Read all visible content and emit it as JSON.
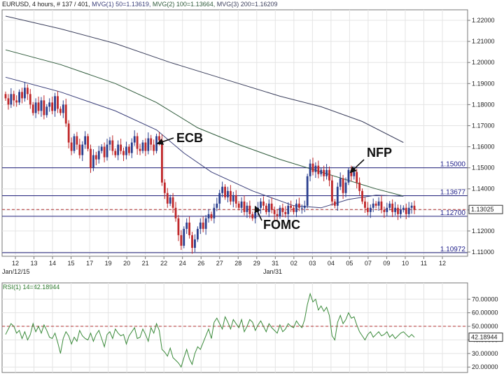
{
  "header": {
    "symbol": "EURUSD",
    "timeframe": ", 4 hours, # 137 / 401, ",
    "ma1": "MVG(1) 50=1.13619,",
    "ma2": "MVG(2) 100=1.13664,",
    "ma3": "MVG(3) 200=1.16209"
  },
  "colors": {
    "up": "#2a3f8f",
    "down": "#c0282a",
    "grid": "#e4e4e4",
    "ma50": "#3a3f7a",
    "ma100": "#2e5a3a",
    "ma200": "#3b3f5c",
    "level": "#1f1f7a",
    "rsi": "#3a8a3a",
    "dashed": "#b03030"
  },
  "chart_data": [
    {
      "type": "candlestick",
      "title": "EURUSD, 4 hours",
      "ylim": [
        1.108,
        1.225
      ],
      "y_ticks": [
        "1.22000",
        "1.21000",
        "1.20000",
        "1.19000",
        "1.18000",
        "1.17000",
        "1.16000",
        "1.15000",
        "1.14000",
        "1.13000",
        "1.12000",
        "1.11000"
      ],
      "x_ticks": [
        "12",
        "13",
        "14",
        "15",
        "17",
        "19",
        "20",
        "21",
        "22",
        "24",
        "26",
        "27",
        "28",
        "29",
        "31",
        "02",
        "03",
        "04",
        "05",
        "07",
        "09",
        "10",
        "11",
        "12"
      ],
      "x_sublabels": {
        "start": "Jan/12/15",
        "mid": "Jan/31"
      },
      "current_price_label": "1.13025",
      "current_price": 1.1302,
      "levels": [
        {
          "value": 1.15,
          "label": "1.15000"
        },
        {
          "value": 1.13677,
          "label": "1.13677"
        },
        {
          "value": 1.127,
          "label": "1.12700"
        },
        {
          "value": 1.10972,
          "label": "1.10972"
        }
      ],
      "annotations": [
        {
          "text": "ECB",
          "candle": 57
        },
        {
          "text": "FOMC",
          "candle": 94
        },
        {
          "text": "NFP",
          "candle": 130
        }
      ],
      "candles_close": [
        1.183,
        1.18,
        1.185,
        1.182,
        1.181,
        1.186,
        1.183,
        1.188,
        1.185,
        1.18,
        1.176,
        1.181,
        1.177,
        1.182,
        1.175,
        1.179,
        1.181,
        1.177,
        1.184,
        1.178,
        1.176,
        1.18,
        1.171,
        1.162,
        1.158,
        1.165,
        1.161,
        1.156,
        1.161,
        1.165,
        1.159,
        1.15,
        1.156,
        1.154,
        1.158,
        1.16,
        1.155,
        1.161,
        1.163,
        1.158,
        1.156,
        1.161,
        1.158,
        1.156,
        1.16,
        1.157,
        1.162,
        1.165,
        1.159,
        1.158,
        1.162,
        1.158,
        1.164,
        1.161,
        1.158,
        1.165,
        1.163,
        1.143,
        1.138,
        1.133,
        1.136,
        1.131,
        1.126,
        1.118,
        1.113,
        1.121,
        1.124,
        1.118,
        1.112,
        1.116,
        1.121,
        1.124,
        1.121,
        1.126,
        1.128,
        1.126,
        1.131,
        1.133,
        1.138,
        1.141,
        1.136,
        1.139,
        1.134,
        1.137,
        1.133,
        1.131,
        1.134,
        1.129,
        1.132,
        1.128,
        1.126,
        1.129,
        1.131,
        1.134,
        1.132,
        1.129,
        1.133,
        1.13,
        1.128,
        1.127,
        1.131,
        1.129,
        1.128,
        1.132,
        1.131,
        1.129,
        1.133,
        1.131,
        1.131,
        1.132,
        1.146,
        1.152,
        1.148,
        1.151,
        1.147,
        1.149,
        1.146,
        1.149,
        1.144,
        1.134,
        1.132,
        1.141,
        1.145,
        1.138,
        1.143,
        1.149,
        1.146,
        1.148,
        1.143,
        1.139,
        1.134,
        1.131,
        1.129,
        1.131,
        1.133,
        1.132,
        1.134,
        1.13,
        1.129,
        1.131,
        1.133,
        1.129,
        1.131,
        1.128,
        1.13,
        1.131,
        1.128,
        1.131,
        1.132,
        1.13
      ],
      "ma50": [
        [
          0,
          1.193
        ],
        [
          20,
          1.186
        ],
        [
          40,
          1.177
        ],
        [
          55,
          1.168
        ],
        [
          65,
          1.157
        ],
        [
          75,
          1.148
        ],
        [
          90,
          1.139
        ],
        [
          105,
          1.132
        ],
        [
          115,
          1.131
        ],
        [
          125,
          1.135
        ],
        [
          135,
          1.137
        ],
        [
          145,
          1.1365
        ]
      ],
      "ma100": [
        [
          0,
          1.206
        ],
        [
          20,
          1.199
        ],
        [
          40,
          1.19
        ],
        [
          55,
          1.181
        ],
        [
          70,
          1.169
        ],
        [
          85,
          1.161
        ],
        [
          100,
          1.154
        ],
        [
          115,
          1.148
        ],
        [
          125,
          1.144
        ],
        [
          135,
          1.14
        ],
        [
          145,
          1.1366
        ]
      ],
      "ma200": [
        [
          0,
          1.222
        ],
        [
          20,
          1.216
        ],
        [
          40,
          1.209
        ],
        [
          60,
          1.2
        ],
        [
          80,
          1.192
        ],
        [
          100,
          1.184
        ],
        [
          115,
          1.179
        ],
        [
          130,
          1.172
        ],
        [
          145,
          1.162
        ]
      ]
    },
    {
      "type": "line",
      "title": "RSI(1) 14=42.18944",
      "ylim": [
        16,
        82
      ],
      "y_ticks": [
        "70.00000",
        "60.00000",
        "50.00000",
        "40.00000",
        "30.00000",
        "20.00000"
      ],
      "reference_line": 50,
      "current_label": "42.18944",
      "values": [
        44,
        48,
        52,
        50,
        45,
        47,
        41,
        46,
        40,
        44,
        52,
        46,
        50,
        45,
        51,
        47,
        42,
        41,
        45,
        38,
        30,
        41,
        46,
        43,
        37,
        42,
        39,
        47,
        43,
        41,
        40,
        45,
        39,
        44,
        47,
        41,
        35,
        44,
        46,
        41,
        48,
        45,
        43,
        44,
        37,
        43,
        46,
        49,
        41,
        42,
        48,
        44,
        39,
        49,
        45,
        52,
        47,
        33,
        31,
        28,
        34,
        27,
        25,
        23,
        20,
        27,
        33,
        26,
        22,
        30,
        35,
        33,
        38,
        43,
        48,
        41,
        53,
        56,
        52,
        48,
        57,
        53,
        48,
        55,
        52,
        49,
        55,
        46,
        50,
        55,
        53,
        47,
        51,
        54,
        50,
        46,
        52,
        49,
        47,
        45,
        51,
        46,
        48,
        52,
        50,
        49,
        54,
        51,
        49,
        55,
        66,
        74,
        68,
        70,
        62,
        65,
        61,
        64,
        58,
        43,
        40,
        53,
        58,
        52,
        55,
        60,
        56,
        57,
        51,
        46,
        43,
        40,
        44,
        46,
        42,
        44,
        46,
        43,
        44,
        46,
        42,
        44,
        41,
        43,
        45,
        46,
        44,
        42,
        44,
        42
      ]
    }
  ]
}
